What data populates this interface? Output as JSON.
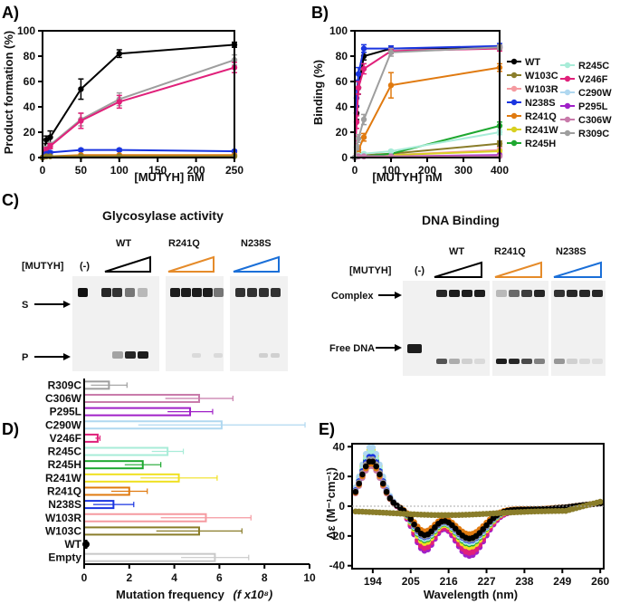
{
  "panels": {
    "A": "A)",
    "B": "B)",
    "C": "C)",
    "D": "D)",
    "E": "E)"
  },
  "chart_data": [
    {
      "id": "A",
      "type": "line",
      "xlabel": "[MUTYH] nM",
      "ylabel": "Product formation (%)",
      "xlim": [
        0,
        250
      ],
      "ylim": [
        0,
        100
      ],
      "xticks": [
        "0",
        "50",
        "100",
        "150",
        "200",
        "250"
      ],
      "yticks": [
        "0",
        "20",
        "40",
        "60",
        "80",
        "100"
      ],
      "x": [
        0,
        5,
        10,
        50,
        100,
        250
      ],
      "series": [
        {
          "name": "WT",
          "color": "#000000",
          "values": [
            0,
            14,
            16,
            54,
            82,
            89
          ],
          "errors": [
            0,
            3,
            5,
            8,
            3,
            2
          ]
        },
        {
          "name": "R309C",
          "color": "#9e9e9e",
          "values": [
            0,
            7,
            10,
            30,
            46,
            77
          ],
          "errors": [
            0,
            2,
            2,
            5,
            5,
            4
          ]
        },
        {
          "name": "V246F",
          "color": "#e0207a",
          "values": [
            0,
            6,
            9,
            29,
            44,
            71
          ],
          "errors": [
            0,
            2,
            2,
            6,
            5,
            4
          ]
        },
        {
          "name": "N238S",
          "color": "#1a35e0",
          "values": [
            0,
            3,
            4,
            6,
            6,
            5
          ],
          "errors": [
            0,
            1,
            1,
            1,
            1,
            1
          ]
        },
        {
          "name": "R241Q",
          "color": "#e07a10",
          "values": [
            0,
            1,
            1,
            2,
            2,
            2
          ],
          "errors": [
            0,
            0.5,
            0.5,
            0.5,
            0.5,
            0.5
          ]
        },
        {
          "name": "W103C",
          "color": "#8a7d2a",
          "values": [
            0,
            1,
            1,
            1,
            1,
            1
          ],
          "errors": [
            0,
            0.5,
            0.5,
            0.5,
            0.5,
            0.5
          ]
        }
      ]
    },
    {
      "id": "B",
      "type": "line",
      "xlabel": "[MUTYH] nM",
      "ylabel": "Binding (%)",
      "xlim": [
        0,
        400
      ],
      "ylim": [
        0,
        100
      ],
      "xticks": [
        "0",
        "100",
        "200",
        "300",
        "400"
      ],
      "yticks": [
        "0",
        "20",
        "40",
        "60",
        "80",
        "100"
      ],
      "x": [
        0,
        5,
        10,
        25,
        100,
        400
      ],
      "series": [
        {
          "name": "WT",
          "color": "#000000",
          "values": [
            0,
            35,
            55,
            80,
            86,
            87
          ],
          "errors": [
            0,
            5,
            5,
            3,
            2,
            2
          ]
        },
        {
          "name": "W103C",
          "color": "#8a7d2a",
          "values": [
            0,
            1,
            1,
            2,
            3,
            11
          ],
          "errors": [
            0,
            1,
            1,
            1,
            1,
            2
          ]
        },
        {
          "name": "W103R",
          "color": "#f59aa0",
          "values": [
            0,
            1,
            1,
            1,
            2,
            6
          ],
          "errors": [
            0,
            1,
            1,
            1,
            1,
            2
          ]
        },
        {
          "name": "N238S",
          "color": "#1a35e0",
          "values": [
            0,
            47,
            66,
            86,
            86,
            88
          ],
          "errors": [
            0,
            6,
            5,
            3,
            2,
            2
          ]
        },
        {
          "name": "R241Q",
          "color": "#e07a10",
          "values": [
            0,
            3,
            6,
            16,
            57,
            71
          ],
          "errors": [
            0,
            2,
            2,
            3,
            10,
            3
          ]
        },
        {
          "name": "R241W",
          "color": "#d8d020",
          "values": [
            0,
            1,
            1,
            1,
            2,
            5
          ],
          "errors": [
            0,
            1,
            1,
            1,
            1,
            1
          ]
        },
        {
          "name": "R245H",
          "color": "#1ea830",
          "values": [
            0,
            1,
            1,
            1,
            3,
            25
          ],
          "errors": [
            0,
            1,
            1,
            1,
            1,
            3
          ]
        },
        {
          "name": "R245C",
          "color": "#a8ecd8",
          "values": [
            0,
            1,
            2,
            3,
            5,
            20
          ],
          "errors": [
            0,
            1,
            1,
            1,
            1,
            2
          ]
        },
        {
          "name": "V246F",
          "color": "#e0207a",
          "values": [
            0,
            28,
            55,
            70,
            84,
            86
          ],
          "errors": [
            0,
            5,
            5,
            4,
            2,
            2
          ]
        },
        {
          "name": "C290W",
          "color": "#b0d8f0",
          "values": [
            0,
            1,
            1,
            1,
            1,
            1
          ],
          "errors": [
            0,
            0.5,
            0.5,
            0.5,
            0.5,
            0.5
          ]
        },
        {
          "name": "P295L",
          "color": "#a020c8",
          "values": [
            0,
            1,
            1,
            1,
            1,
            2
          ],
          "errors": [
            0,
            0.5,
            0.5,
            0.5,
            0.5,
            0.5
          ]
        },
        {
          "name": "C306W",
          "color": "#c87aaa",
          "values": [
            0,
            1,
            1,
            1,
            1,
            1
          ],
          "errors": [
            0,
            0.5,
            0.5,
            0.5,
            0.5,
            0.5
          ]
        },
        {
          "name": "R309C",
          "color": "#9e9e9e",
          "values": [
            0,
            8,
            15,
            30,
            83,
            87
          ],
          "errors": [
            0,
            2,
            3,
            4,
            3,
            2
          ]
        }
      ]
    },
    {
      "id": "D",
      "type": "bar",
      "orientation": "horizontal",
      "xlabel": "Mutation frequency",
      "xlabel_italic": "(f x10⁸)",
      "xlim": [
        0,
        10
      ],
      "xticks": [
        "0",
        "2",
        "4",
        "6",
        "8",
        "10"
      ],
      "categories": [
        "R309C",
        "C306W",
        "P295L",
        "C290W",
        "V246F",
        "R245C",
        "R245H",
        "R241W",
        "R241Q",
        "N238S",
        "W103R",
        "W103C",
        "WT",
        "Empty"
      ],
      "values": [
        1.1,
        5.1,
        4.7,
        6.1,
        0.6,
        3.7,
        2.6,
        4.2,
        2.0,
        1.3,
        5.4,
        5.1,
        0.1,
        5.8
      ],
      "errors": [
        0.8,
        1.5,
        1.0,
        3.7,
        0.1,
        0.7,
        0.8,
        1.7,
        0.8,
        0.9,
        2.0,
        1.9,
        0.05,
        1.5
      ],
      "colors": [
        "#9e9e9e",
        "#c87aaa",
        "#a020c8",
        "#b0d8f0",
        "#e0207a",
        "#a8ecd8",
        "#1ea830",
        "#f0e020",
        "#e07a10",
        "#1a35e0",
        "#f59aa0",
        "#8a7d2a",
        "#000000",
        "#c8c8c8"
      ]
    },
    {
      "id": "E",
      "type": "scatter",
      "xlabel": "Wavelength (nm)",
      "ylabel": "Δε (M⁻¹cm⁻¹)",
      "xlim": [
        188,
        261
      ],
      "ylim": [
        -42,
        42
      ],
      "xticks": [
        "194",
        "205",
        "216",
        "227",
        "238",
        "249",
        "260"
      ],
      "xtick_values": [
        194,
        205,
        216,
        227,
        238,
        249,
        260
      ],
      "yticks": [
        "40",
        "20",
        "0",
        "-20",
        "-40"
      ],
      "ytick_values": [
        40,
        20,
        0,
        -20,
        -40
      ],
      "series": [
        {
          "name": "P295L",
          "color": "#a020c8",
          "depth": 1.15,
          "peak": 1.0
        },
        {
          "name": "V246F",
          "color": "#e0207a",
          "depth": 1.08,
          "peak": 0.9
        },
        {
          "name": "R241W",
          "color": "#f0e020",
          "depth": 0.95,
          "peak": 1.2
        },
        {
          "name": "R245H",
          "color": "#1ea830",
          "depth": 0.88,
          "peak": 1.1
        },
        {
          "name": "R245C",
          "color": "#a8ecd8",
          "depth": 0.85,
          "peak": 1.15
        },
        {
          "name": "C290W",
          "color": "#b0d8f0",
          "depth": 0.82,
          "peak": 1.25
        },
        {
          "name": "N238S",
          "color": "#1a35e0",
          "depth": 0.8,
          "peak": 1.05
        },
        {
          "name": "R309C",
          "color": "#9e9e9e",
          "depth": 0.78,
          "peak": 1.0
        },
        {
          "name": "C306W",
          "color": "#c87aaa",
          "depth": 0.72,
          "peak": 0.85
        },
        {
          "name": "W103R",
          "color": "#f59aa0",
          "depth": 0.7,
          "peak": 0.95
        },
        {
          "name": "R241Q",
          "color": "#e07a10",
          "depth": 0.65,
          "peak": 0.9
        },
        {
          "name": "WT",
          "color": "#000000",
          "depth": 0.75,
          "peak": 0.95
        },
        {
          "name": "W103C",
          "color": "#8a7d2a",
          "depth": 0.12,
          "peak": 0.05
        }
      ]
    }
  ],
  "gel": {
    "glycosylase_title": "Glycosylase activity",
    "binding_title": "DNA Binding",
    "mutyh_label": "[MUTYH]",
    "minus_label": "(-)",
    "wt_label": "WT",
    "r241q_label": "R241Q",
    "n238s_label": "N238S",
    "s_label": "S",
    "p_label": "P",
    "complex_label": "Complex",
    "free_dna_label": "Free DNA",
    "wt_color": "#000000",
    "r241q_color": "#e58b2a",
    "n238s_color": "#1a6fd8"
  }
}
